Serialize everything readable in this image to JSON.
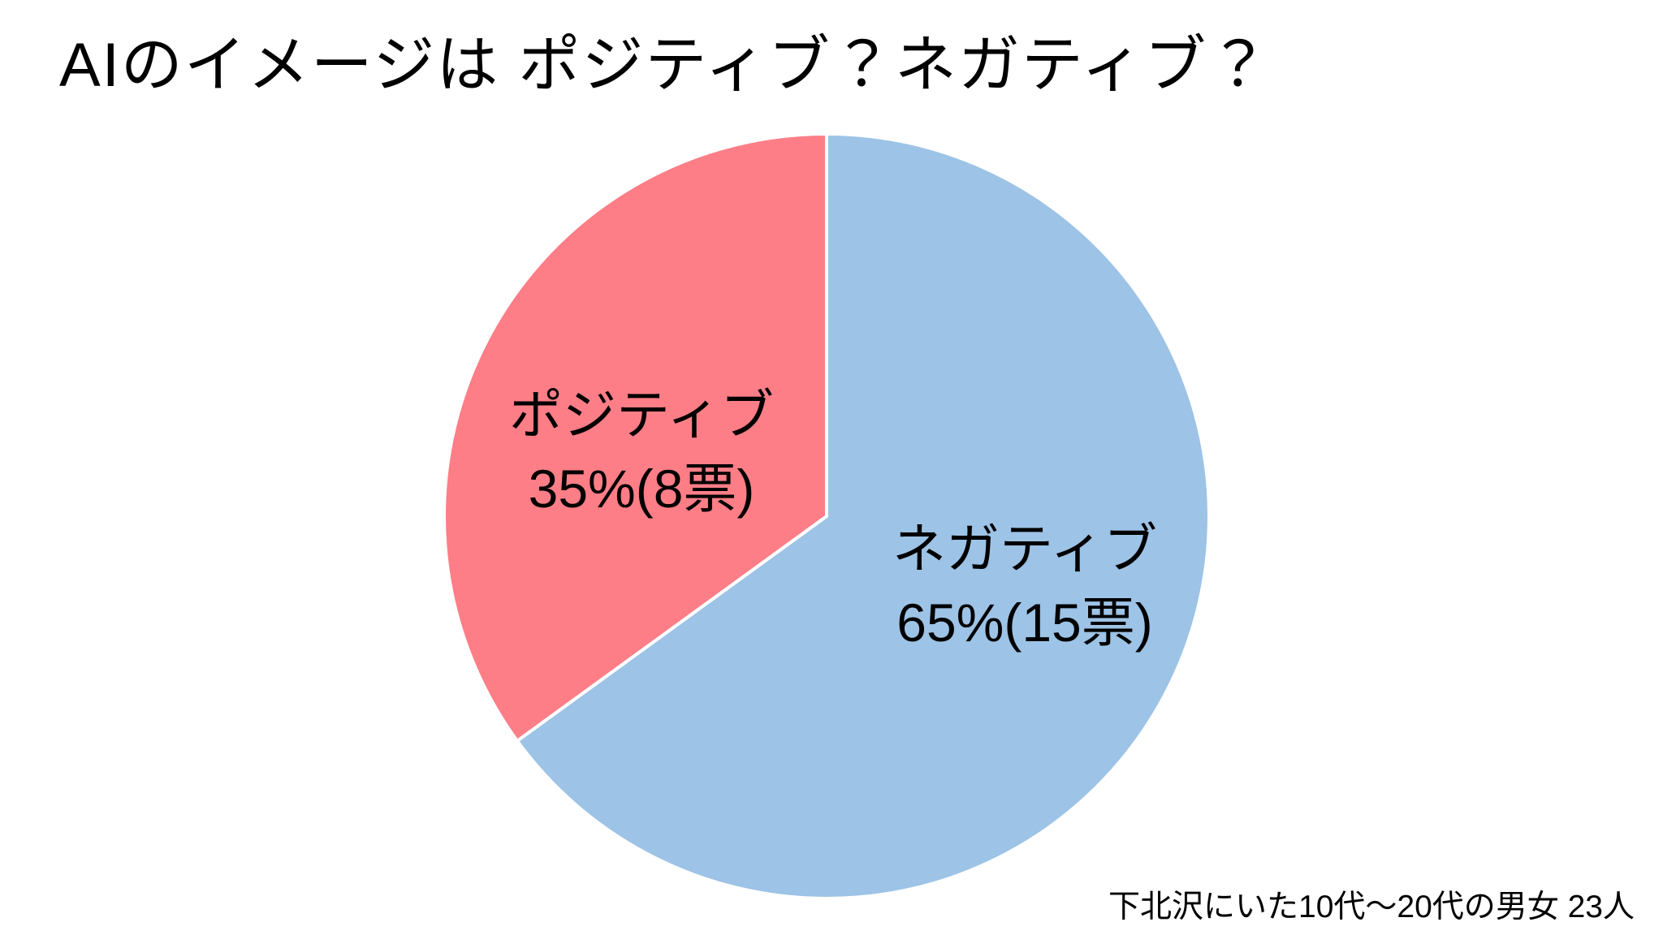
{
  "title": "AIのイメージは ポジティブ？ネガティブ？",
  "footer": "下北沢にいた10代～20代の男女 23人",
  "colors": {
    "background": "#ffffff",
    "text": "#000000",
    "slice_gap": "#ffffff",
    "positive_pink": "#fd7e87",
    "negative_blue": "#9dc3e6"
  },
  "chart_data": {
    "type": "pie",
    "title": "AIのイメージは ポジティブ？ネガティブ？",
    "source_note": "下北沢にいた10代～20代の男女 23人",
    "total_votes": 23,
    "start_angle": "top",
    "direction": "clockwise",
    "legend_position": "none",
    "labels_inside": true,
    "slices": [
      {
        "id": "negative",
        "label": "ネガティブ",
        "percent": 65,
        "votes": 15,
        "display": "65%(15票)",
        "color": "#9dc3e6"
      },
      {
        "id": "positive",
        "label": "ポジティブ",
        "percent": 35,
        "votes": 8,
        "display": "35%(8票)",
        "color": "#fd7e87"
      }
    ]
  }
}
